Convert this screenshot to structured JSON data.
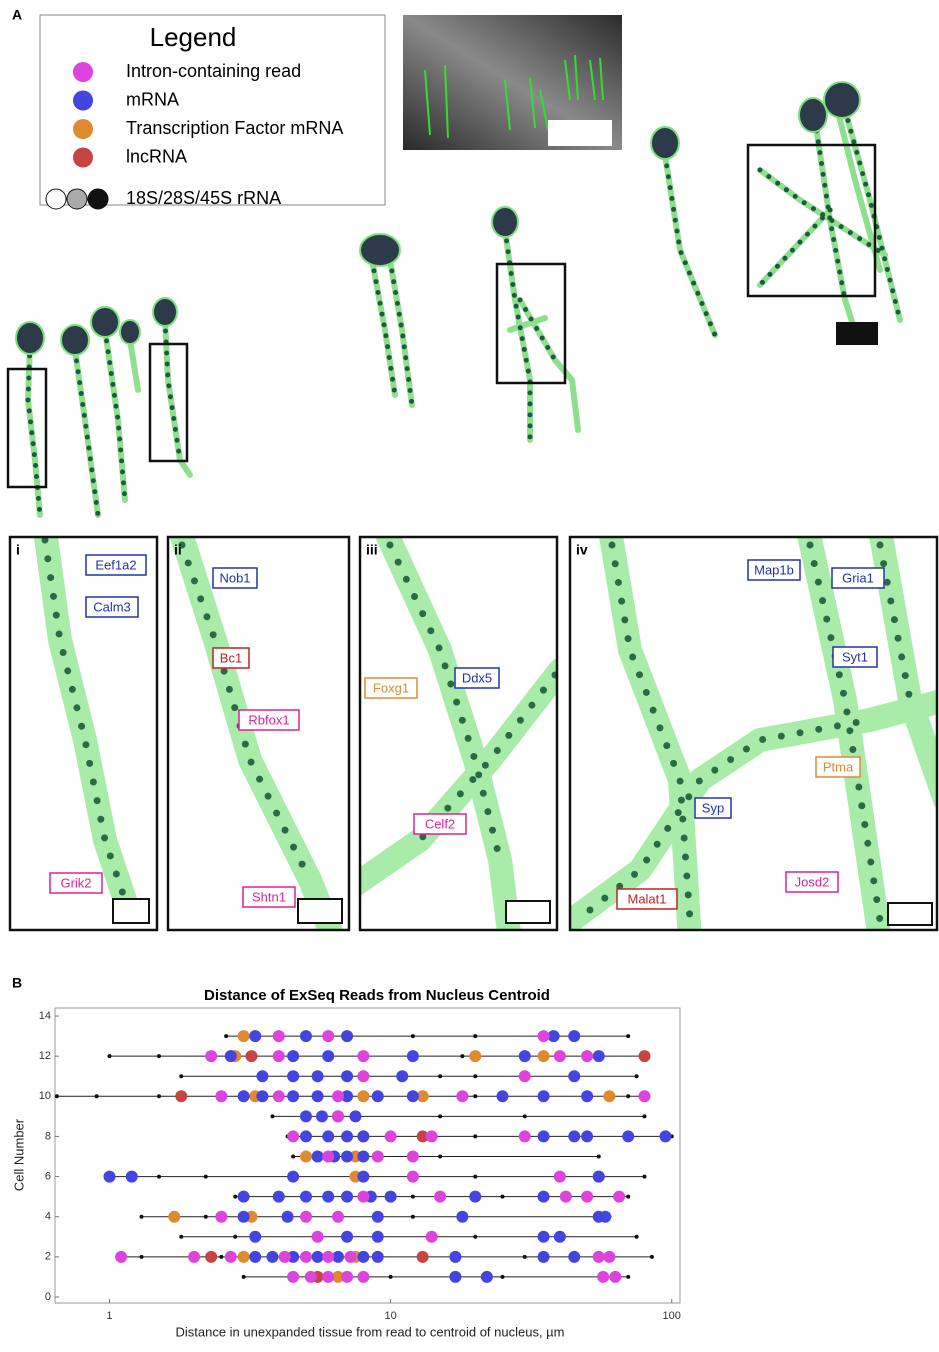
{
  "panel_a": {
    "label": "A",
    "legend_title": "Legend",
    "insets": [
      {
        "label": "i",
        "genes": [
          "Eef1a2",
          "Calm3",
          "Grik2"
        ]
      },
      {
        "label": "ii",
        "genes": [
          "Nob1",
          "Bc1",
          "Rbfox1",
          "Shtn1"
        ]
      },
      {
        "label": "iii",
        "genes": [
          "Foxg1",
          "Ddx5",
          "Celf2"
        ]
      },
      {
        "label": "iv",
        "genes": [
          "Map1b",
          "Gria1",
          "Syt1",
          "Ptma",
          "Syp",
          "Josd2",
          "Malat1"
        ]
      }
    ]
  },
  "panel_b_label": "B",
  "chart_data": {
    "type": "scatter",
    "title": "Distance of ExSeq Reads from Nucleus Centroid",
    "x_label": "Distance in unexpanded tissue from read to centroid of nucleus, µm",
    "y_label": "Cell Number",
    "x_scale": "log",
    "xlim": [
      0.64,
      107
    ],
    "xticks": [
      1,
      10,
      100
    ],
    "ylim": [
      -0.3,
      14.4
    ],
    "yticks": [
      0,
      2,
      4,
      6,
      8,
      10,
      12,
      14
    ],
    "series": [
      {
        "name": "18S/28S/45S rRNA",
        "color": "#111111",
        "x": [
          3,
          10,
          25,
          70,
          1.3,
          2.5,
          30,
          85,
          1.8,
          2.8,
          20,
          75,
          1.3,
          2.2,
          12,
          60,
          2.8,
          12,
          25,
          70,
          1.5,
          2.2,
          20,
          80,
          4.5,
          15,
          55,
          4.3,
          20,
          100,
          3.8,
          15,
          30,
          80,
          0.65,
          0.9,
          1.5,
          20,
          70,
          1.8,
          15,
          20,
          75,
          1,
          1.5,
          18,
          80,
          2.6,
          12,
          20,
          70
        ],
        "values": [
          1,
          1,
          1,
          1,
          2,
          2,
          2,
          2,
          3,
          3,
          3,
          3,
          4,
          4,
          4,
          4,
          5,
          5,
          5,
          5,
          6,
          6,
          6,
          6,
          7,
          7,
          7,
          8,
          8,
          8,
          9,
          9,
          9,
          9,
          10,
          10,
          10,
          10,
          10,
          11,
          11,
          11,
          11,
          12,
          12,
          12,
          12,
          13,
          13,
          13,
          13
        ]
      },
      {
        "name": "Transcription Factor mRNA",
        "color": "#e08a30",
        "x": [
          6.5,
          3,
          7.5,
          1.7,
          3.2,
          7.5,
          55,
          5,
          7.5,
          8,
          3.3,
          8,
          13,
          60,
          2.8,
          20,
          35,
          3
        ],
        "values": [
          1,
          2,
          2,
          4,
          4,
          6,
          6,
          7,
          7,
          8,
          10,
          10,
          10,
          10,
          12,
          12,
          12,
          13
        ]
      },
      {
        "name": "lncRNA",
        "color": "#c84444",
        "x": [
          5.5,
          2.3,
          13,
          13,
          1.8,
          3.2,
          80
        ],
        "values": [
          1,
          2,
          2,
          8,
          10,
          12,
          12
        ]
      },
      {
        "name": "mRNA",
        "color": "#4444e0",
        "x": [
          17,
          22,
          3.3,
          3.8,
          4.5,
          5.5,
          6.5,
          8,
          9,
          17,
          35,
          45,
          3.3,
          7,
          9,
          35,
          40,
          3,
          4.3,
          9,
          18,
          55,
          58,
          3,
          4,
          5,
          6,
          7,
          8.5,
          10,
          20,
          35,
          1,
          1.2,
          4.5,
          8,
          55,
          5.5,
          6.3,
          7,
          8,
          5,
          6,
          7,
          8,
          35,
          45,
          50,
          70,
          95,
          5,
          5.7,
          6.5,
          7.5,
          3,
          3.5,
          4.5,
          5.5,
          7,
          9,
          12,
          25,
          35,
          50,
          3.5,
          4.5,
          5.5,
          7,
          11,
          45,
          2.7,
          4.5,
          6,
          12,
          30,
          55,
          3.3,
          5,
          7,
          38,
          45
        ],
        "values": [
          1,
          1,
          2,
          2,
          2,
          2,
          2,
          2,
          2,
          2,
          2,
          2,
          3,
          3,
          3,
          3,
          3,
          4,
          4,
          4,
          4,
          4,
          4,
          5,
          5,
          5,
          5,
          5,
          5,
          5,
          5,
          5,
          6,
          6,
          6,
          6,
          6,
          7,
          7,
          7,
          7,
          8,
          8,
          8,
          8,
          8,
          8,
          8,
          8,
          8,
          9,
          9,
          9,
          9,
          10,
          10,
          10,
          10,
          10,
          10,
          10,
          10,
          10,
          10,
          11,
          11,
          11,
          11,
          11,
          11,
          12,
          12,
          12,
          12,
          12,
          12,
          13,
          13,
          13,
          13,
          13
        ]
      },
      {
        "name": "Intron-containing read",
        "color": "#dd44dd",
        "x": [
          4.5,
          5.2,
          6,
          7,
          8,
          57,
          63,
          1.1,
          2,
          2.7,
          4.2,
          5,
          6,
          7.2,
          55,
          60,
          5.5,
          14,
          2.5,
          5,
          6.5,
          8,
          15,
          42,
          50,
          65,
          12,
          40,
          6,
          9,
          12,
          4.5,
          10,
          14,
          30,
          6.5,
          2.5,
          4,
          6.5,
          18,
          80,
          8,
          30,
          2.3,
          4,
          8,
          40,
          50,
          4,
          6,
          35
        ],
        "values": [
          1,
          1,
          1,
          1,
          1,
          1,
          1,
          2,
          2,
          2,
          2,
          2,
          2,
          2,
          2,
          2,
          3,
          3,
          4,
          4,
          4,
          5,
          5,
          5,
          5,
          5,
          6,
          6,
          7,
          7,
          7,
          8,
          8,
          8,
          8,
          9,
          10,
          10,
          10,
          10,
          10,
          11,
          11,
          12,
          12,
          12,
          12,
          12,
          13,
          13,
          13
        ]
      }
    ]
  }
}
